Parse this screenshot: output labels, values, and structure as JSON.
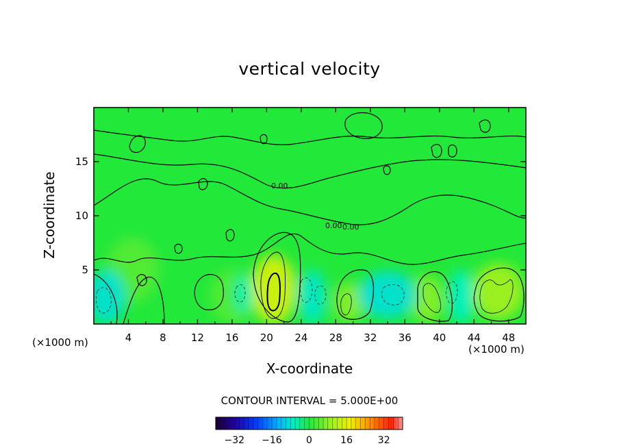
{
  "chart_data": {
    "type": "heatmap",
    "title": "vertical velocity",
    "xlabel": "X-coordinate",
    "ylabel": "Z-coordinate",
    "x_unit": "(×1000 m)",
    "x_ticks": [
      4,
      8,
      12,
      16,
      20,
      24,
      28,
      32,
      36,
      40,
      44,
      48
    ],
    "y_ticks": [
      5,
      10,
      15
    ],
    "xlim": [
      0,
      50
    ],
    "ylim": [
      0,
      20
    ],
    "contour_interval_text": "CONTOUR INTERVAL = 5.000E+00",
    "contour_labels": [
      "0.00",
      "0.00",
      "0.00"
    ],
    "colorbar": {
      "range": [
        -40,
        40
      ],
      "tick_values": [
        -32,
        -16,
        0,
        16,
        32
      ],
      "tick_labels": [
        "−32",
        "−16",
        "0",
        "16",
        "32"
      ]
    },
    "background_color": "#22e83a",
    "features": [
      {
        "kind": "updraft",
        "x": 20.8,
        "z": 3.2,
        "rx": 2.6,
        "rz": 3.2,
        "value": 15
      },
      {
        "kind": "updraft",
        "x": 29.5,
        "z": 2.0,
        "rx": 1.8,
        "rz": 1.8,
        "value": 8
      },
      {
        "kind": "updraft",
        "x": 38.6,
        "z": 2.3,
        "rx": 1.9,
        "rz": 2.2,
        "value": 8
      },
      {
        "kind": "updraft",
        "x": 46.8,
        "z": 3.0,
        "rx": 3.0,
        "rz": 2.6,
        "value": 10
      },
      {
        "kind": "updraft",
        "x": 4.5,
        "z": 5.0,
        "rx": 3.0,
        "rz": 3.0,
        "value": 4
      },
      {
        "kind": "updraft",
        "x": 16.0,
        "z": 2.5,
        "rx": 2.5,
        "rz": 2.5,
        "value": 4
      },
      {
        "kind": "downdraft",
        "x": 1.5,
        "z": 2.5,
        "rx": 2.2,
        "rz": 2.5,
        "value": -8
      },
      {
        "kind": "downdraft",
        "x": 17.3,
        "z": 2.8,
        "rx": 1.2,
        "rz": 1.8,
        "value": -5
      },
      {
        "kind": "downdraft",
        "x": 25.3,
        "z": 2.5,
        "rx": 1.6,
        "rz": 2.5,
        "value": -7
      },
      {
        "kind": "downdraft",
        "x": 34.0,
        "z": 2.7,
        "rx": 3.4,
        "rz": 2.2,
        "value": -8
      },
      {
        "kind": "downdraft",
        "x": 42.5,
        "z": 2.5,
        "rx": 1.5,
        "rz": 2.5,
        "value": -6
      }
    ]
  }
}
